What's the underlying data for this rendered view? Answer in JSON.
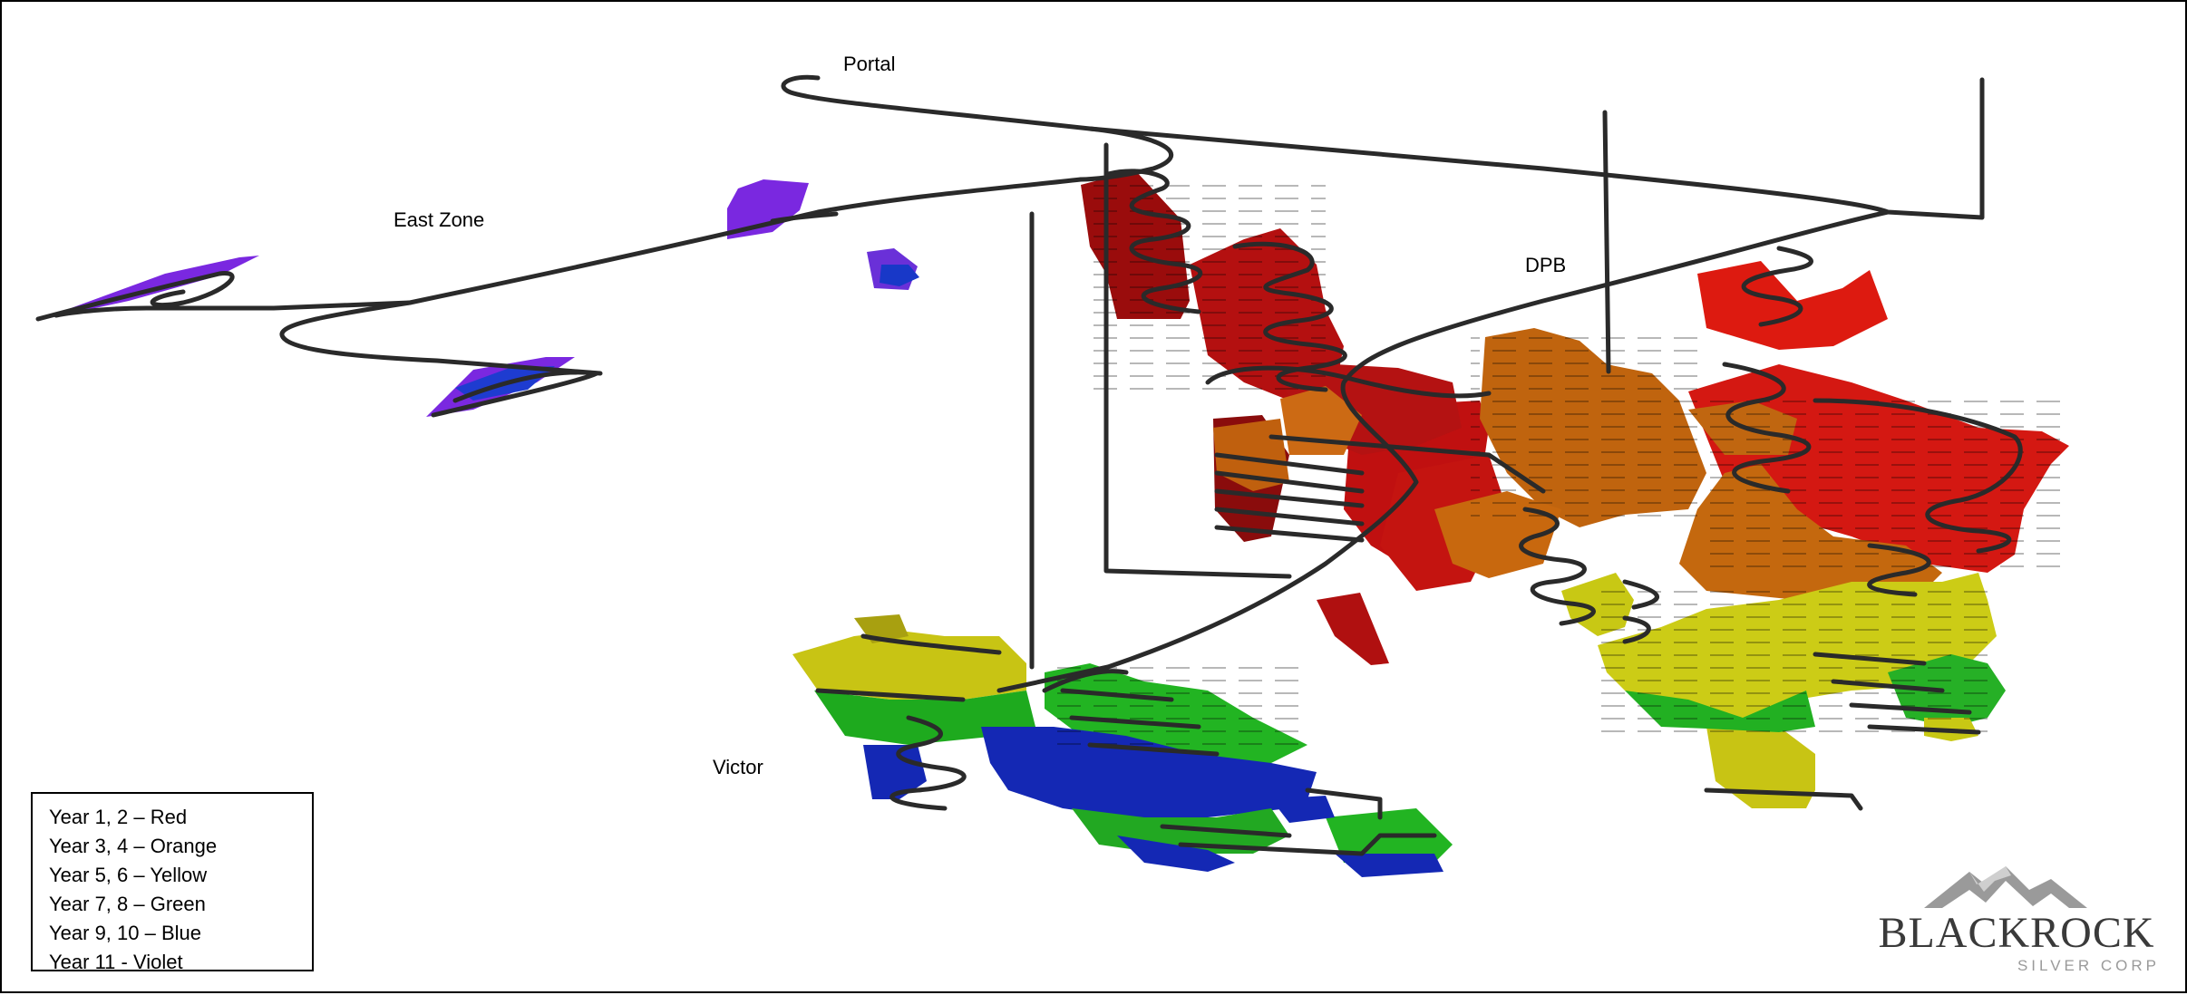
{
  "labels": {
    "portal": "Portal",
    "east_zone": "East Zone",
    "dpb": "DPB",
    "victor": "Victor"
  },
  "legend": [
    "Year 1, 2 – Red",
    "Year 3, 4 – Orange",
    "Year 5, 6 – Yellow",
    "Year 7, 8 – Green",
    "Year 9, 10 – Blue",
    "Year 11 - Violet"
  ],
  "logo": {
    "name": "BLACKROCK",
    "sub": "SILVER CORP"
  },
  "colors": {
    "red": "#cc1010",
    "dark_red": "#9a0c0c",
    "orange": "#c86a14",
    "yellow": "#c8c814",
    "green": "#22b022",
    "blue": "#1428b4",
    "violet": "#7a28e0",
    "ramp": "#2a2a2a"
  }
}
